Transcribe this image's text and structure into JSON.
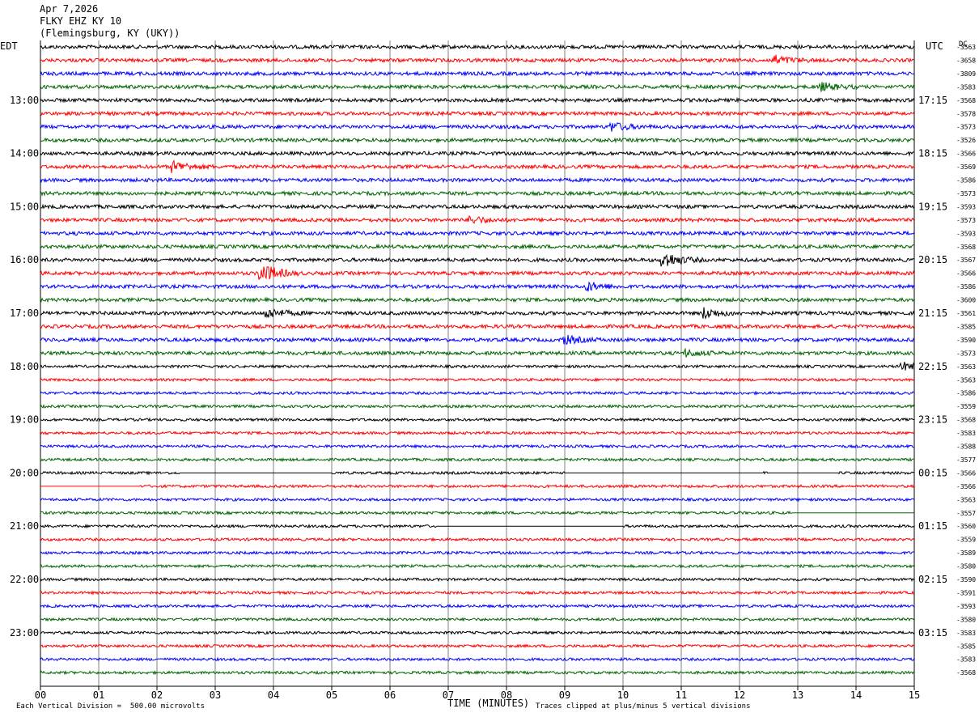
{
  "header": {
    "date": "Apr 7,2026",
    "station": "FLKY EHZ KY 10",
    "location": "(Flemingsburg, KY (UKY))"
  },
  "left_tz": "EDT",
  "right_tz": "UTC",
  "corner_right": "DC",
  "footer": {
    "scale_note": "Each Vertical Division =  500.00 microvolts",
    "clip_note": "Traces clipped at plus/minus 5 vertical divisions",
    "xlabel": "TIME (MINUTES)"
  },
  "chart_data": {
    "type": "line",
    "title": "FLKY EHZ KY 10",
    "xlabel": "TIME (MINUTES)",
    "xlim": [
      0,
      15
    ],
    "x_ticks": [
      "00",
      "01",
      "02",
      "03",
      "04",
      "05",
      "06",
      "07",
      "08",
      "09",
      "10",
      "11",
      "12",
      "13",
      "14",
      "15"
    ],
    "rows": 48,
    "row_minutes": 15,
    "trace_colors": [
      "#000000",
      "#ff0000",
      "#0000ff",
      "#006400"
    ],
    "left_hour_labels": [
      "13:00",
      "14:00",
      "15:00",
      "16:00",
      "17:00",
      "18:00",
      "19:00",
      "20:00",
      "21:00",
      "22:00",
      "23:00"
    ],
    "right_hour_labels": [
      "17:15",
      "18:15",
      "19:15",
      "20:15",
      "21:15",
      "22:15",
      "23:15",
      "00:15",
      "01:15",
      "02:15",
      "03:15"
    ],
    "row_end_values": [
      "-3563",
      "-3658",
      "-3809",
      "-3583",
      "-3568",
      "-3578",
      "-3573",
      "-3526",
      "-3566",
      "-3569",
      "-3586",
      "-3573",
      "-3593",
      "-3573",
      "-3593",
      "-3568",
      "-3567",
      "-3566",
      "-3586",
      "-3600",
      "-3561",
      "-3585",
      "-3590",
      "-3573",
      "-3563",
      "-3563",
      "-3586",
      "-3559",
      "-3568",
      "-3583",
      "-3588",
      "-3577",
      "-3566",
      "-3566",
      "-3563",
      "-3557",
      "-3560",
      "-3559",
      "-3589",
      "-3580",
      "-3590",
      "-3591",
      "-3593",
      "-3580",
      "-3583",
      "-3585",
      "-3583",
      "-3568"
    ],
    "events": [
      {
        "row": 1,
        "minute": 12.6,
        "amp": 2.2
      },
      {
        "row": 3,
        "minute": 13.4,
        "amp": 2.0
      },
      {
        "row": 6,
        "minute": 9.8,
        "amp": 2.2
      },
      {
        "row": 9,
        "minute": 2.3,
        "amp": 2.6
      },
      {
        "row": 13,
        "minute": 7.4,
        "amp": 1.8
      },
      {
        "row": 16,
        "minute": 10.7,
        "amp": 4.2
      },
      {
        "row": 17,
        "minute": 3.8,
        "amp": 5.0
      },
      {
        "row": 18,
        "minute": 9.4,
        "amp": 2.0
      },
      {
        "row": 20,
        "minute": 3.9,
        "amp": 2.4
      },
      {
        "row": 20,
        "minute": 11.4,
        "amp": 2.6
      },
      {
        "row": 22,
        "minute": 9.0,
        "amp": 2.0
      },
      {
        "row": 23,
        "minute": 11.1,
        "amp": 1.6
      },
      {
        "row": 24,
        "minute": 14.8,
        "amp": 2.0
      }
    ],
    "flat_segments": [
      {
        "row": 32,
        "from": 2.4,
        "to": 5.0
      },
      {
        "row": 32,
        "from": 9.0,
        "to": 12.4
      },
      {
        "row": 32,
        "from": 12.5,
        "to": 13.7
      },
      {
        "row": 33,
        "from": 0,
        "to": 1.7
      },
      {
        "row": 35,
        "from": 12.9,
        "to": 15
      },
      {
        "row": 36,
        "from": 6.8,
        "to": 10.0
      }
    ]
  }
}
